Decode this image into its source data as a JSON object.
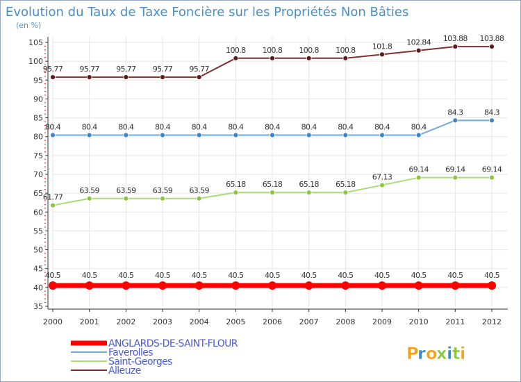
{
  "chart_data": {
    "type": "line",
    "title": "Evolution du Taux de Taxe Foncière sur les Propriétés Non Bâties",
    "unit_label": "(en %)",
    "categories": [
      "2000",
      "2001",
      "2002",
      "2003",
      "2004",
      "2005",
      "2006",
      "2007",
      "2008",
      "2009",
      "2010",
      "2011",
      "2012"
    ],
    "ylim": [
      35,
      105
    ],
    "yticks": [
      35,
      40,
      45,
      50,
      55,
      60,
      65,
      70,
      75,
      80,
      85,
      90,
      95,
      100,
      105
    ],
    "grid": true,
    "legend_position": "bottom-left",
    "series": [
      {
        "name": "ANGLARDS-DE-SAINT-FLOUR",
        "color": "#ff0000",
        "line_color": "#ff0000",
        "weight": "heavy",
        "values": [
          40.5,
          40.5,
          40.5,
          40.5,
          40.5,
          40.5,
          40.5,
          40.5,
          40.5,
          40.5,
          40.5,
          40.5,
          40.5
        ],
        "labels": [
          "40.5",
          "40.5",
          "40.5",
          "40.5",
          "40.5",
          "40.5",
          "40.5",
          "40.5",
          "40.5",
          "40.5",
          "40.5",
          "40.5",
          "40.5"
        ]
      },
      {
        "name": "Faverolles",
        "color": "#3d85c6",
        "line_color": "#6fa8dc",
        "weight": "normal",
        "values": [
          80.4,
          80.4,
          80.4,
          80.4,
          80.4,
          80.4,
          80.4,
          80.4,
          80.4,
          80.4,
          80.4,
          84.3,
          84.3
        ],
        "labels": [
          "80.4",
          "80.4",
          "80.4",
          "80.4",
          "80.4",
          "80.4",
          "80.4",
          "80.4",
          "80.4",
          "80.4",
          "80.4",
          "84.3",
          "84.3"
        ]
      },
      {
        "name": "Saint-Georges",
        "color": "#8cc63f",
        "line_color": "#a9dc77",
        "weight": "normal",
        "values": [
          61.77,
          63.59,
          63.59,
          63.59,
          63.59,
          65.18,
          65.18,
          65.18,
          65.18,
          67.13,
          69.14,
          69.14,
          69.14
        ],
        "labels": [
          "61.77",
          "63.59",
          "63.59",
          "63.59",
          "63.59",
          "65.18",
          "65.18",
          "65.18",
          "65.18",
          "67.13",
          "69.14",
          "69.14",
          "69.14"
        ]
      },
      {
        "name": "Alleuze",
        "color": "#5c1a1a",
        "line_color": "#7f3030",
        "weight": "normal",
        "values": [
          95.77,
          95.77,
          95.77,
          95.77,
          95.77,
          100.8,
          100.8,
          100.8,
          100.8,
          101.8,
          102.84,
          103.88,
          103.88
        ],
        "labels": [
          "95.77",
          "95.77",
          "95.77",
          "95.77",
          "95.77",
          "100.8",
          "100.8",
          "100.8",
          "100.8",
          "101.8",
          "102.84",
          "103.88",
          "103.88"
        ]
      }
    ]
  },
  "brand": {
    "letters": [
      "P",
      "r",
      "o",
      "x",
      "i",
      "t",
      "i"
    ],
    "colors": [
      "#f6a01a",
      "#3d85c6",
      "#f6a01a",
      "#8cc63f",
      "#3d85c6",
      "#8cc63f",
      "#f6a01a"
    ]
  },
  "colors": {
    "title": "#4a90c8",
    "axis": "#333333",
    "grid": "#e6e6e6",
    "legend_text": "#4a5ad8",
    "label_text": "#333333",
    "minor_tick": "#ff0000"
  }
}
